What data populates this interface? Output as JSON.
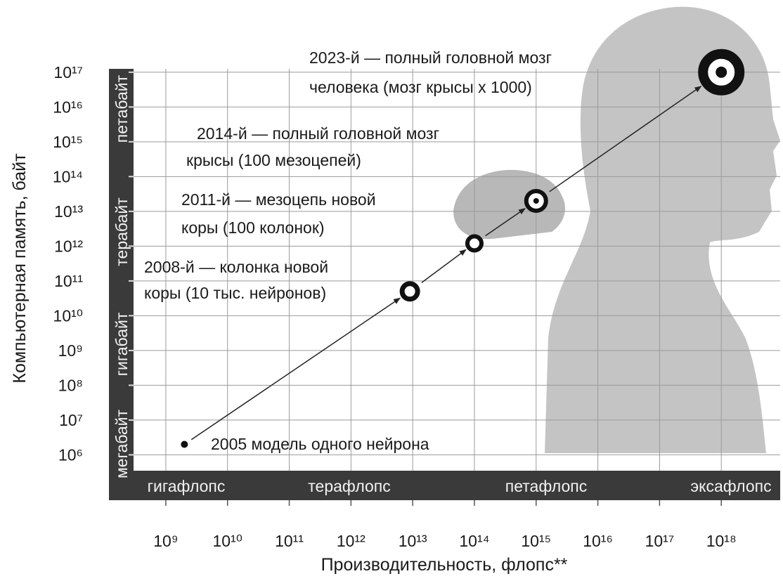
{
  "chart_data": {
    "type": "scatter",
    "x_label": "Производительность, флопс**",
    "y_label": "Компьютерная память, байт",
    "xscale": "log",
    "yscale": "log",
    "grid": true,
    "color": "#111111",
    "x": [
      2000000000.0,
      9000000000000.0,
      100000000000000.0,
      1000000000000000.0,
      1e+18
    ],
    "values": [
      2000000.0,
      50000000000.0,
      1200000000000.0,
      20000000000000.0,
      1e+17
    ],
    "annotations": [
      [
        "2005 модель одного нейрона"
      ],
      [
        "2008-й — колонка новой",
        "коры (10 тыс. нейронов)"
      ],
      [
        "2011-й — мезоцепь новой",
        "коры (100 колонок)"
      ],
      [
        "2014-й — полный головной мозг",
        "крысы (100 мезоцепей)"
      ],
      [
        "2023-й —  полный головной мозг",
        "человека (мозг крысы х 1000)"
      ]
    ],
    "xlim": [
      300000000.0,
      9e+18
    ],
    "ylim": [
      350000.0,
      1.25e+17
    ],
    "xticks": [
      {
        "value": 1000000000.0,
        "label": "10⁹"
      },
      {
        "value": 10000000000.0,
        "label": "10¹⁰"
      },
      {
        "value": 100000000000.0,
        "label": "10¹¹"
      },
      {
        "value": 1000000000000.0,
        "label": "10¹²"
      },
      {
        "value": 10000000000000.0,
        "label": "10¹³"
      },
      {
        "value": 100000000000000.0,
        "label": "10¹⁴"
      },
      {
        "value": 1000000000000000.0,
        "label": "10¹⁵"
      },
      {
        "value": 1e+16,
        "label": "10¹⁶"
      },
      {
        "value": 1e+17,
        "label": "10¹⁷"
      },
      {
        "value": 1e+18,
        "label": "10¹⁸"
      }
    ],
    "yticks": [
      {
        "value": 1000000.0,
        "label": "10⁶"
      },
      {
        "value": 10000000.0,
        "label": "10⁷"
      },
      {
        "value": 100000000.0,
        "label": "10⁸"
      },
      {
        "value": 1000000000.0,
        "label": "10⁹"
      },
      {
        "value": 10000000000.0,
        "label": "10¹⁰"
      },
      {
        "value": 100000000000.0,
        "label": "10¹¹"
      },
      {
        "value": 1000000000000.0,
        "label": "10¹²"
      },
      {
        "value": 10000000000000.0,
        "label": "10¹³"
      },
      {
        "value": 100000000000000.0,
        "label": "10¹⁴"
      },
      {
        "value": 1000000000000000.0,
        "label": "10¹⁵"
      },
      {
        "value": 1e+16,
        "label": "10¹⁶"
      },
      {
        "value": 1e+17,
        "label": "10¹⁷"
      }
    ],
    "y_bands": [
      "мегабайт",
      "гигабайт",
      "терабайт",
      "петабайт"
    ],
    "x_bands": [
      "гигафлопс",
      "терафлопс",
      "петафлопс",
      "эксафлопс"
    ]
  }
}
